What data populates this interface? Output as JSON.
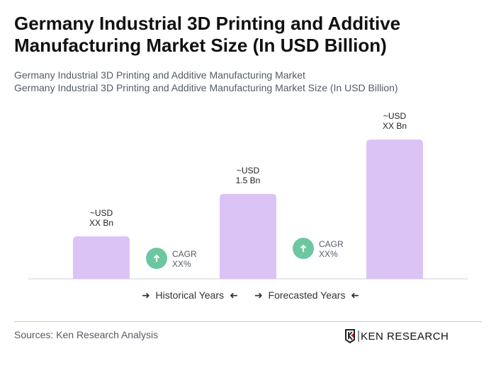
{
  "title": "Germany Industrial 3D Printing and Additive Manufacturing Market Size (In USD Billion)",
  "subtitle1": "Germany Industrial 3D Printing and Additive Manufacturing Market",
  "subtitle2": "Germany Industrial 3D Printing and Additive Manufacturing Market Size (In USD Billion)",
  "chart_data": {
    "type": "bar",
    "categories": [
      "",
      "",
      ""
    ],
    "values": [
      0.75,
      1.5,
      2.46
    ],
    "data_labels": [
      [
        "~USD",
        "XX Bn"
      ],
      [
        "~USD",
        "1.5 Bn"
      ],
      [
        "~USD",
        "XX Bn"
      ]
    ],
    "cagr": [
      {
        "label": "CAGR",
        "value": "XX%"
      },
      {
        "label": "CAGR",
        "value": "XX%"
      }
    ],
    "bar_color": "#dcc3f6",
    "cagr_color": "#6cc7a1",
    "ylim": [
      0,
      2.6
    ],
    "grid": false
  },
  "legend": {
    "historical": "Historical Years",
    "forecast": "Forecasted Years"
  },
  "source": "Sources: Ken Research Analysis",
  "logo": "KEN RESEARCH"
}
